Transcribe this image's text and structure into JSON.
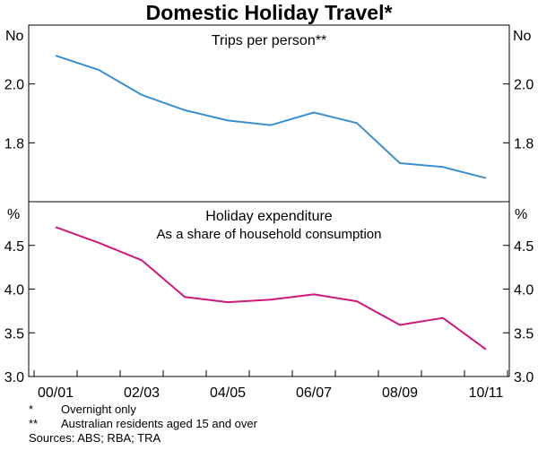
{
  "title": "Domestic Holiday Travel*",
  "x_ticks": [
    "00/01",
    "02/03",
    "04/05",
    "06/07",
    "08/09",
    "10/11"
  ],
  "notes": [
    {
      "mark": "*",
      "text": "Overnight only"
    },
    {
      "mark": "**",
      "text": "Australian residents aged 15 and over"
    }
  ],
  "sources": "Sources: ABS; RBA; TRA",
  "chart_data": [
    {
      "type": "line",
      "title": "Trips per person**",
      "unit": "No",
      "x": [
        "2000/01",
        "2001/02",
        "2002/03",
        "2003/04",
        "2004/05",
        "2005/06",
        "2006/07",
        "2007/08",
        "2008/09",
        "2009/10",
        "2010/11"
      ],
      "series": [
        {
          "values": [
            2.096,
            2.048,
            1.963,
            1.911,
            1.876,
            1.86,
            1.903,
            1.867,
            1.731,
            1.718,
            1.68
          ]
        }
      ],
      "ylim": [
        1.6,
        2.2
      ],
      "yticks": [
        1.8,
        2.0
      ],
      "color": "#3a8fd0"
    },
    {
      "type": "line",
      "title": "Holiday expenditure",
      "subtitle": "As a share of household consumption",
      "unit": "%",
      "x": [
        "2000/01",
        "2001/02",
        "2002/03",
        "2003/04",
        "2004/05",
        "2005/06",
        "2006/07",
        "2007/08",
        "2008/09",
        "2009/10",
        "2010/11"
      ],
      "series": [
        {
          "values": [
            4.71,
            4.53,
            4.33,
            3.91,
            3.85,
            3.88,
            3.94,
            3.86,
            3.59,
            3.67,
            3.31
          ]
        }
      ],
      "ylim": [
        3.0,
        5.0
      ],
      "yticks": [
        3.0,
        3.5,
        4.0,
        4.5
      ],
      "color": "#d0187a"
    }
  ]
}
